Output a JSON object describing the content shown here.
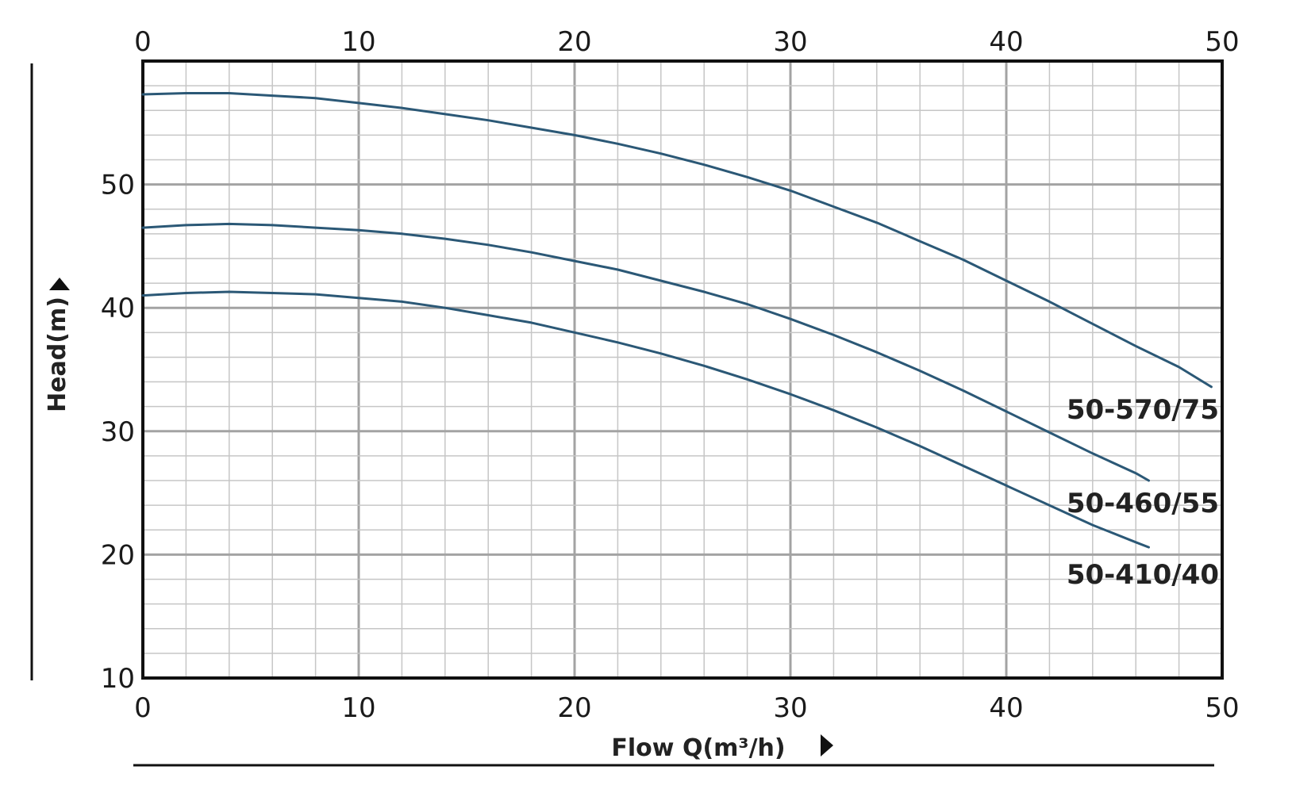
{
  "chart_data": {
    "type": "line",
    "xlabel": "Flow Q(m³/h)",
    "ylabel": "Head(m)",
    "xlim": [
      0,
      50
    ],
    "ylim": [
      10,
      60
    ],
    "x_ticks": [
      "0",
      "10",
      "20",
      "30",
      "40",
      "50"
    ],
    "y_ticks": [
      "10",
      "20",
      "30",
      "40",
      "50"
    ],
    "grid": true,
    "x_axis_labels_top_and_bottom": true,
    "series": [
      {
        "name": "50-570/75",
        "color": "#2b5876",
        "x": [
          0,
          2,
          4,
          6,
          8,
          10,
          12,
          14,
          16,
          18,
          20,
          22,
          24,
          26,
          28,
          30,
          32,
          34,
          36,
          38,
          40,
          42,
          44,
          46,
          48,
          49.5
        ],
        "y": [
          57.3,
          57.4,
          57.4,
          57.2,
          57.0,
          56.6,
          56.2,
          55.7,
          55.2,
          54.6,
          54.0,
          53.3,
          52.5,
          51.6,
          50.6,
          49.5,
          48.2,
          46.9,
          45.4,
          43.9,
          42.2,
          40.5,
          38.7,
          36.9,
          35.2,
          33.6
        ]
      },
      {
        "name": "50-460/55",
        "color": "#2b5876",
        "x": [
          0,
          2,
          4,
          6,
          8,
          10,
          12,
          14,
          16,
          18,
          20,
          22,
          24,
          26,
          28,
          30,
          32,
          34,
          36,
          38,
          40,
          42,
          44,
          46,
          46.6
        ],
        "y": [
          46.5,
          46.7,
          46.8,
          46.7,
          46.5,
          46.3,
          46.0,
          45.6,
          45.1,
          44.5,
          43.8,
          43.1,
          42.2,
          41.3,
          40.3,
          39.1,
          37.8,
          36.4,
          34.9,
          33.3,
          31.6,
          29.9,
          28.2,
          26.6,
          26.0
        ]
      },
      {
        "name": "50-410/40",
        "color": "#2b5876",
        "x": [
          0,
          2,
          4,
          6,
          8,
          10,
          12,
          14,
          16,
          18,
          20,
          22,
          24,
          26,
          28,
          30,
          32,
          34,
          36,
          38,
          40,
          42,
          44,
          46,
          46.6
        ],
        "y": [
          41.0,
          41.2,
          41.3,
          41.2,
          41.1,
          40.8,
          40.5,
          40.0,
          39.4,
          38.8,
          38.0,
          37.2,
          36.3,
          35.3,
          34.2,
          33.0,
          31.7,
          30.3,
          28.8,
          27.2,
          25.6,
          24.0,
          22.4,
          21.0,
          20.6
        ]
      }
    ]
  }
}
